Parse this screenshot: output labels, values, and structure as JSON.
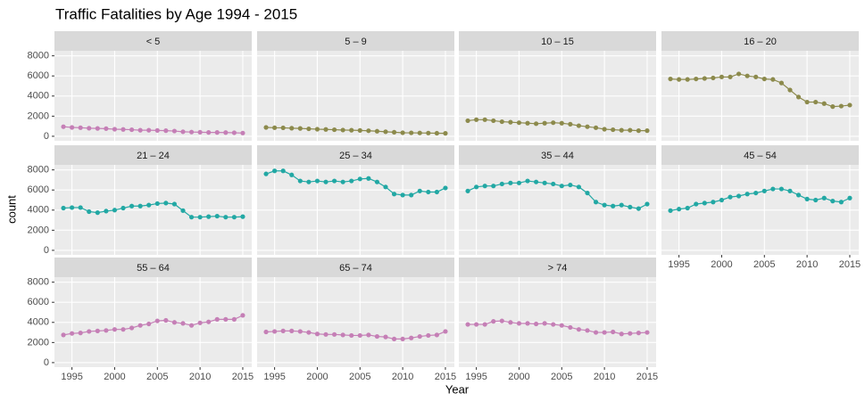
{
  "title": "Traffic Fatalities by Age 1994 - 2015",
  "x_label": "Year",
  "y_label": "count",
  "chart_data": [
    {
      "type": "line",
      "title": "< 5",
      "color": "#c57fb6",
      "x": [
        1994,
        1995,
        1996,
        1997,
        1998,
        1999,
        2000,
        2001,
        2002,
        2003,
        2004,
        2005,
        2006,
        2007,
        2008,
        2009,
        2010,
        2011,
        2012,
        2013,
        2014,
        2015
      ],
      "values": [
        950,
        880,
        850,
        800,
        780,
        760,
        700,
        680,
        650,
        600,
        600,
        580,
        560,
        520,
        450,
        420,
        400,
        380,
        380,
        370,
        350,
        320
      ],
      "xlim": [
        1992.95,
        2016.05
      ],
      "ylim": [
        -450,
        8500
      ],
      "xticks": [
        1995,
        2000,
        2005,
        2010,
        2015
      ],
      "yticks": [
        0,
        2000,
        4000,
        6000,
        8000
      ],
      "grid": true
    },
    {
      "type": "line",
      "title": "5 – 9",
      "color": "#8c8a4c",
      "x": [
        1994,
        1995,
        1996,
        1997,
        1998,
        1999,
        2000,
        2001,
        2002,
        2003,
        2004,
        2005,
        2006,
        2007,
        2008,
        2009,
        2010,
        2011,
        2012,
        2013,
        2014,
        2015
      ],
      "values": [
        880,
        850,
        840,
        800,
        780,
        740,
        700,
        680,
        650,
        620,
        600,
        580,
        550,
        500,
        450,
        400,
        350,
        340,
        330,
        320,
        300,
        290
      ],
      "xlim": [
        1992.95,
        2016.05
      ],
      "ylim": [
        -450,
        8500
      ],
      "xticks": [
        1995,
        2000,
        2005,
        2010,
        2015
      ],
      "yticks": [
        0,
        2000,
        4000,
        6000,
        8000
      ],
      "grid": true
    },
    {
      "type": "line",
      "title": "10 – 15",
      "color": "#8c8a4c",
      "x": [
        1994,
        1995,
        1996,
        1997,
        1998,
        1999,
        2000,
        2001,
        2002,
        2003,
        2004,
        2005,
        2006,
        2007,
        2008,
        2009,
        2010,
        2011,
        2012,
        2013,
        2014,
        2015
      ],
      "values": [
        1550,
        1650,
        1650,
        1550,
        1450,
        1400,
        1350,
        1300,
        1250,
        1300,
        1350,
        1300,
        1200,
        1050,
        950,
        850,
        700,
        650,
        600,
        600,
        560,
        560
      ],
      "xlim": [
        1992.95,
        2016.05
      ],
      "ylim": [
        -450,
        8500
      ],
      "xticks": [
        1995,
        2000,
        2005,
        2010,
        2015
      ],
      "yticks": [
        0,
        2000,
        4000,
        6000,
        8000
      ],
      "grid": true
    },
    {
      "type": "line",
      "title": "16 – 20",
      "color": "#8c8a4c",
      "x": [
        1994,
        1995,
        1996,
        1997,
        1998,
        1999,
        2000,
        2001,
        2002,
        2003,
        2004,
        2005,
        2006,
        2007,
        2008,
        2009,
        2010,
        2011,
        2012,
        2013,
        2014,
        2015
      ],
      "values": [
        5700,
        5650,
        5650,
        5700,
        5750,
        5800,
        5900,
        5900,
        6200,
        6000,
        5900,
        5700,
        5650,
        5300,
        4600,
        3900,
        3400,
        3400,
        3250,
        2950,
        3000,
        3100
      ],
      "xlim": [
        1992.95,
        2016.05
      ],
      "ylim": [
        -450,
        8500
      ],
      "xticks": [
        1995,
        2000,
        2005,
        2010,
        2015
      ],
      "yticks": [
        0,
        2000,
        4000,
        6000,
        8000
      ],
      "grid": true
    },
    {
      "type": "line",
      "title": "21 – 24",
      "color": "#22a8a4",
      "x": [
        1994,
        1995,
        1996,
        1997,
        1998,
        1999,
        2000,
        2001,
        2002,
        2003,
        2004,
        2005,
        2006,
        2007,
        2008,
        2009,
        2010,
        2011,
        2012,
        2013,
        2014,
        2015
      ],
      "values": [
        4200,
        4250,
        4250,
        3850,
        3750,
        3900,
        4000,
        4200,
        4400,
        4400,
        4500,
        4650,
        4700,
        4600,
        3950,
        3300,
        3300,
        3350,
        3400,
        3300,
        3300,
        3350
      ],
      "xlim": [
        1992.95,
        2016.05
      ],
      "ylim": [
        -450,
        8500
      ],
      "xticks": [
        1995,
        2000,
        2005,
        2010,
        2015
      ],
      "yticks": [
        0,
        2000,
        4000,
        6000,
        8000
      ],
      "grid": true
    },
    {
      "type": "line",
      "title": "25 – 34",
      "color": "#22a8a4",
      "x": [
        1994,
        1995,
        1996,
        1997,
        1998,
        1999,
        2000,
        2001,
        2002,
        2003,
        2004,
        2005,
        2006,
        2007,
        2008,
        2009,
        2010,
        2011,
        2012,
        2013,
        2014,
        2015
      ],
      "values": [
        7600,
        7900,
        7900,
        7500,
        6900,
        6800,
        6900,
        6800,
        6900,
        6800,
        6900,
        7100,
        7150,
        6800,
        6300,
        5600,
        5500,
        5500,
        5900,
        5800,
        5800,
        6200
      ],
      "xlim": [
        1992.95,
        2016.05
      ],
      "ylim": [
        -450,
        8500
      ],
      "xticks": [
        1995,
        2000,
        2005,
        2010,
        2015
      ],
      "yticks": [
        0,
        2000,
        4000,
        6000,
        8000
      ],
      "grid": true
    },
    {
      "type": "line",
      "title": "35 – 44",
      "color": "#22a8a4",
      "x": [
        1994,
        1995,
        1996,
        1997,
        1998,
        1999,
        2000,
        2001,
        2002,
        2003,
        2004,
        2005,
        2006,
        2007,
        2008,
        2009,
        2010,
        2011,
        2012,
        2013,
        2014,
        2015
      ],
      "values": [
        5900,
        6300,
        6400,
        6400,
        6600,
        6700,
        6700,
        6900,
        6800,
        6700,
        6600,
        6400,
        6500,
        6300,
        5700,
        4800,
        4500,
        4400,
        4500,
        4300,
        4150,
        4600
      ],
      "xlim": [
        1992.95,
        2016.05
      ],
      "ylim": [
        -450,
        8500
      ],
      "xticks": [
        1995,
        2000,
        2005,
        2010,
        2015
      ],
      "yticks": [
        0,
        2000,
        4000,
        6000,
        8000
      ],
      "grid": true
    },
    {
      "type": "line",
      "title": "45 – 54",
      "color": "#22a8a4",
      "x": [
        1994,
        1995,
        1996,
        1997,
        1998,
        1999,
        2000,
        2001,
        2002,
        2003,
        2004,
        2005,
        2006,
        2007,
        2008,
        2009,
        2010,
        2011,
        2012,
        2013,
        2014,
        2015
      ],
      "values": [
        3950,
        4100,
        4200,
        4600,
        4700,
        4800,
        5000,
        5300,
        5400,
        5600,
        5700,
        5900,
        6100,
        6100,
        5900,
        5500,
        5100,
        5000,
        5200,
        4900,
        4800,
        5200
      ],
      "xlim": [
        1992.95,
        2016.05
      ],
      "ylim": [
        -450,
        8500
      ],
      "xticks": [
        1995,
        2000,
        2005,
        2010,
        2015
      ],
      "yticks": [
        0,
        2000,
        4000,
        6000,
        8000
      ],
      "grid": true
    },
    {
      "type": "line",
      "title": "55 – 64",
      "color": "#c57fb6",
      "x": [
        1994,
        1995,
        1996,
        1997,
        1998,
        1999,
        2000,
        2001,
        2002,
        2003,
        2004,
        2005,
        2006,
        2007,
        2008,
        2009,
        2010,
        2011,
        2012,
        2013,
        2014,
        2015
      ],
      "values": [
        2750,
        2900,
        2950,
        3100,
        3150,
        3200,
        3300,
        3300,
        3450,
        3700,
        3850,
        4150,
        4200,
        4000,
        3900,
        3700,
        3950,
        4050,
        4300,
        4300,
        4300,
        4700
      ],
      "xlim": [
        1992.95,
        2016.05
      ],
      "ylim": [
        -450,
        8500
      ],
      "xticks": [
        1995,
        2000,
        2005,
        2010,
        2015
      ],
      "yticks": [
        0,
        2000,
        4000,
        6000,
        8000
      ],
      "grid": true
    },
    {
      "type": "line",
      "title": "65 – 74",
      "color": "#c57fb6",
      "x": [
        1994,
        1995,
        1996,
        1997,
        1998,
        1999,
        2000,
        2001,
        2002,
        2003,
        2004,
        2005,
        2006,
        2007,
        2008,
        2009,
        2010,
        2011,
        2012,
        2013,
        2014,
        2015
      ],
      "values": [
        3050,
        3100,
        3150,
        3150,
        3100,
        3000,
        2850,
        2800,
        2800,
        2750,
        2700,
        2700,
        2750,
        2600,
        2550,
        2350,
        2350,
        2450,
        2600,
        2700,
        2750,
        3100
      ],
      "xlim": [
        1992.95,
        2016.05
      ],
      "ylim": [
        -450,
        8500
      ],
      "xticks": [
        1995,
        2000,
        2005,
        2010,
        2015
      ],
      "yticks": [
        0,
        2000,
        4000,
        6000,
        8000
      ],
      "grid": true
    },
    {
      "type": "line",
      "title": "> 74",
      "color": "#c57fb6",
      "x": [
        1994,
        1995,
        1996,
        1997,
        1998,
        1999,
        2000,
        2001,
        2002,
        2003,
        2004,
        2005,
        2006,
        2007,
        2008,
        2009,
        2010,
        2011,
        2012,
        2013,
        2014,
        2015
      ],
      "values": [
        3800,
        3800,
        3800,
        4100,
        4150,
        4000,
        3900,
        3900,
        3850,
        3900,
        3800,
        3700,
        3500,
        3300,
        3200,
        3000,
        3000,
        3050,
        2850,
        2900,
        2950,
        3000
      ],
      "xlim": [
        1992.95,
        2016.05
      ],
      "ylim": [
        -450,
        8500
      ],
      "xticks": [
        1995,
        2000,
        2005,
        2010,
        2015
      ],
      "yticks": [
        0,
        2000,
        4000,
        6000,
        8000
      ],
      "grid": true
    }
  ]
}
